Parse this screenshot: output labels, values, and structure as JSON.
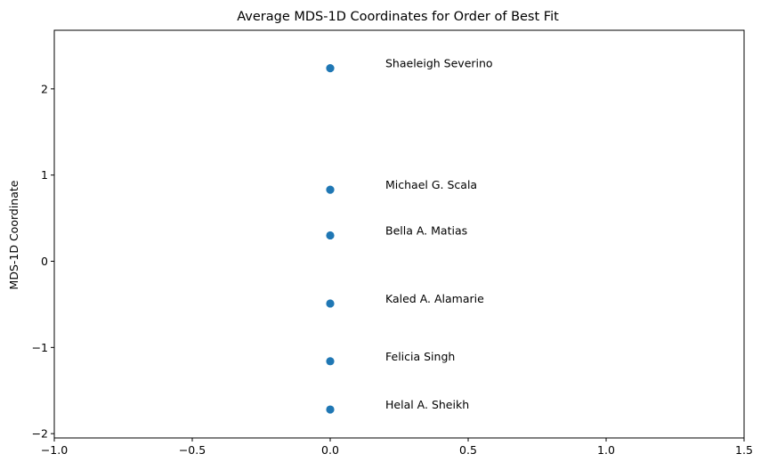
{
  "chart_data": {
    "type": "scatter",
    "title": "Average MDS-1D Coordinates for Order of Best Fit",
    "xlabel": "",
    "ylabel": "MDS-1D Coordinate",
    "xlim": [
      -1.0,
      1.5
    ],
    "ylim": [
      -2.05,
      2.68
    ],
    "xticks": [
      -1.0,
      -0.5,
      0.0,
      0.5,
      1.0,
      1.5
    ],
    "xtick_labels": [
      "−1.0",
      "−0.5",
      "0.0",
      "0.5",
      "1.0",
      "1.5"
    ],
    "yticks": [
      -2,
      -1,
      0,
      1,
      2
    ],
    "ytick_labels": [
      "−2",
      "−1",
      "0",
      "1",
      "2"
    ],
    "grid": false,
    "point_color": "#1f77b4",
    "label_x_offset": 0.2,
    "points": [
      {
        "x": 0.0,
        "y": 2.24,
        "label": "Shaeleigh Severino"
      },
      {
        "x": 0.0,
        "y": 0.83,
        "label": "Michael G. Scala"
      },
      {
        "x": 0.0,
        "y": 0.3,
        "label": "Bella A. Matias"
      },
      {
        "x": 0.0,
        "y": -0.49,
        "label": "Kaled A. Alamarie"
      },
      {
        "x": 0.0,
        "y": -1.16,
        "label": "Felicia Singh"
      },
      {
        "x": 0.0,
        "y": -1.72,
        "label": "Helal A. Sheikh"
      }
    ]
  }
}
